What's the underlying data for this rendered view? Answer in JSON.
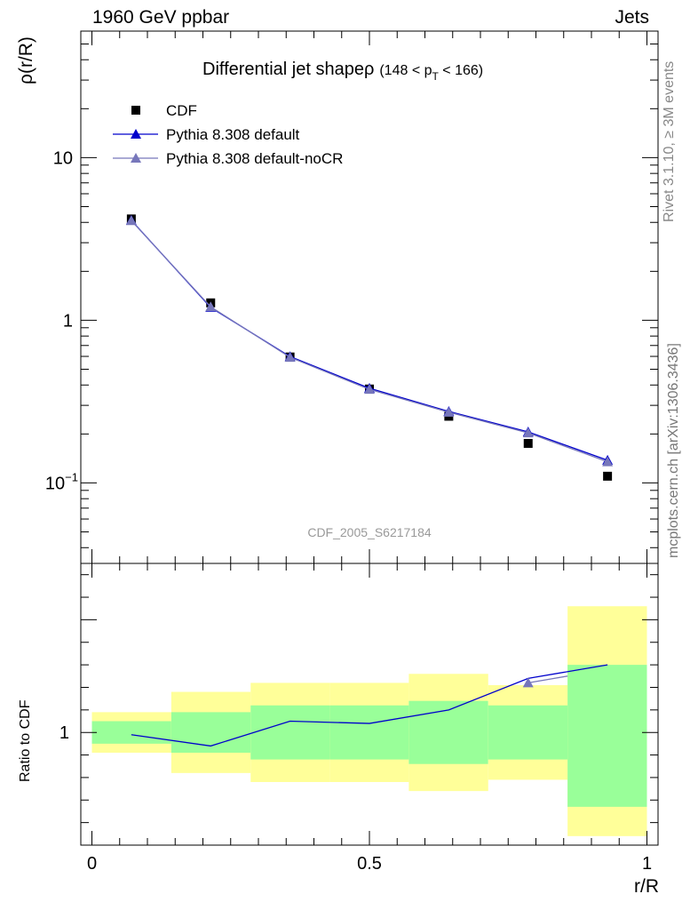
{
  "header": {
    "left": "1960 GeV ppbar",
    "right": "Jets"
  },
  "side": {
    "rivet": "Rivet 3.1.10, ≥ 3M events",
    "mcplots": "mcplots.cern.ch [arXiv:1306.3436]"
  },
  "watermark": "CDF_2005_S6217184",
  "chart_data": [
    {
      "type": "scatter",
      "title": "Differential jet shapeρ",
      "title_suffix": "(148 < p",
      "title_sub": "T",
      "title_end": " < 166)",
      "ylabel": "ρ(r/R)",
      "xlabel": "r/R",
      "yscale": "log",
      "xlim": [
        -0.02,
        1.02
      ],
      "ylim": [
        0.032,
        60
      ],
      "yticks": [
        {
          "value": 0.1,
          "label": "10",
          "sup": "−1"
        },
        {
          "value": 1,
          "label": "1",
          "sup": ""
        },
        {
          "value": 10,
          "label": "10",
          "sup": ""
        }
      ],
      "legend_position": "top-left",
      "series": [
        {
          "name": "CDF",
          "color": "#000000",
          "marker": "square",
          "x": [
            0.071,
            0.214,
            0.357,
            0.5,
            0.643,
            0.786,
            0.929
          ],
          "y": [
            4.2,
            1.28,
            0.595,
            0.378,
            0.257,
            0.175,
            0.11
          ]
        },
        {
          "name": "Pythia 8.308 default",
          "color": "#0000cc",
          "marker": "triangle",
          "x": [
            0.071,
            0.214,
            0.357,
            0.5,
            0.643,
            0.786,
            0.929
          ],
          "y": [
            4.12,
            1.2,
            0.598,
            0.382,
            0.275,
            0.206,
            0.138
          ]
        },
        {
          "name": "Pythia 8.308 default-noCR",
          "color": "#7777bb",
          "marker": "triangle",
          "x": [
            0.071,
            0.214,
            0.357,
            0.5,
            0.643,
            0.786,
            0.929
          ],
          "y": [
            4.1,
            1.21,
            0.592,
            0.376,
            0.272,
            0.203,
            0.135
          ]
        }
      ]
    },
    {
      "type": "line",
      "ylabel": "Ratio to CDF",
      "xlabel": "r/R",
      "xlim": [
        -0.02,
        1.02
      ],
      "ylim": [
        0.5,
        1.75
      ],
      "xticks": [
        {
          "value": 0,
          "label": "0"
        },
        {
          "value": 0.5,
          "label": "0.5"
        },
        {
          "value": 1,
          "label": "1"
        }
      ],
      "yticks": [
        {
          "value": 1,
          "label": "1"
        }
      ],
      "bands": {
        "edges": [
          0,
          0.143,
          0.286,
          0.429,
          0.571,
          0.714,
          0.857,
          1.0
        ],
        "inner": [
          [
            0.95,
            1.05
          ],
          [
            0.91,
            1.09
          ],
          [
            0.88,
            1.12
          ],
          [
            0.88,
            1.12
          ],
          [
            0.86,
            1.14
          ],
          [
            0.88,
            1.12
          ],
          [
            0.67,
            1.3
          ]
        ],
        "outer": [
          [
            0.91,
            1.09
          ],
          [
            0.82,
            1.18
          ],
          [
            0.78,
            1.22
          ],
          [
            0.78,
            1.22
          ],
          [
            0.74,
            1.26
          ],
          [
            0.79,
            1.21
          ],
          [
            0.54,
            1.56
          ]
        ],
        "inner_color": "#99ff99",
        "outer_color": "#ffff99"
      },
      "series": [
        {
          "name": "Pythia 8.308 default",
          "color": "#0000cc",
          "x": [
            0.071,
            0.214,
            0.357,
            0.5,
            0.643,
            0.786,
            0.929
          ],
          "y": [
            0.99,
            0.94,
            1.05,
            1.04,
            1.1,
            1.24,
            1.3
          ]
        },
        {
          "name": "Pythia 8.308 default-noCR",
          "color": "#7777bb",
          "x": [
            0.786,
            0.857
          ],
          "y": [
            1.22,
            1.25
          ]
        }
      ]
    }
  ]
}
